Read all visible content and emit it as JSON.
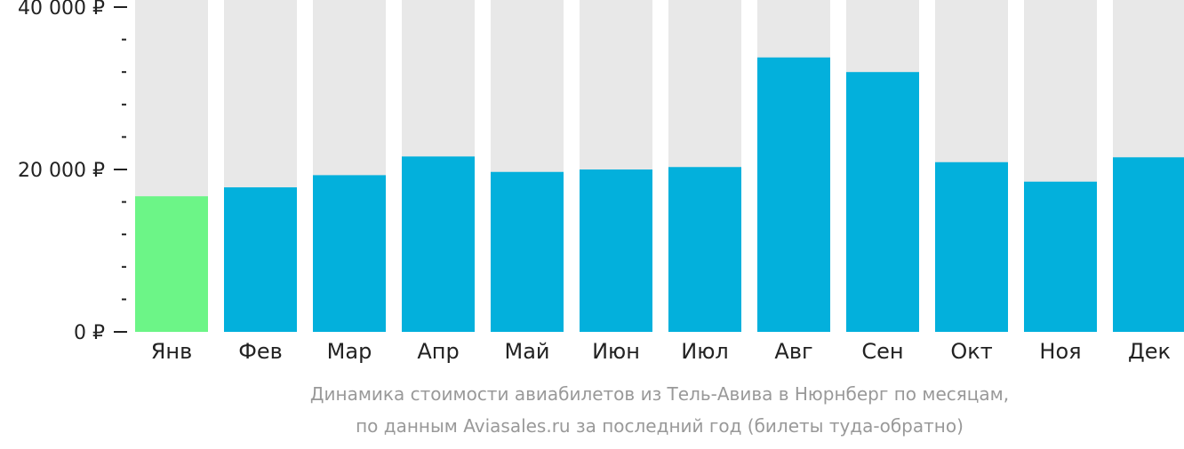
{
  "chart_data": {
    "type": "bar",
    "categories": [
      "Янв",
      "Фев",
      "Мар",
      "Апр",
      "Май",
      "Июн",
      "Июл",
      "Авг",
      "Сен",
      "Окт",
      "Ноя",
      "Дек"
    ],
    "values": [
      16700,
      17800,
      19300,
      21600,
      19700,
      20000,
      20300,
      33800,
      32000,
      20900,
      18500,
      21500
    ],
    "highlight_index": 0,
    "ylim": [
      0,
      40000
    ],
    "y_ticks": [
      {
        "value": 40000,
        "label": "40 000 ₽"
      },
      {
        "value": 20000,
        "label": "20 000 ₽"
      },
      {
        "value": 0,
        "label": "0 ₽"
      }
    ],
    "minor_tick_step": 4000,
    "caption_line1": "Динамика стоимости авиабилетов из Тель-Авива в Нюрнберг по месяцам,",
    "caption_line2": "по данным Aviasales.ru за последний год (билеты туда-обратно)",
    "grid": false,
    "legend": "none",
    "colors": {
      "bar": "#03b0dc",
      "bar_highlight": "#6cf587",
      "bar_background": "#e8e8e8",
      "axis": "#222222",
      "caption": "#999999"
    }
  }
}
